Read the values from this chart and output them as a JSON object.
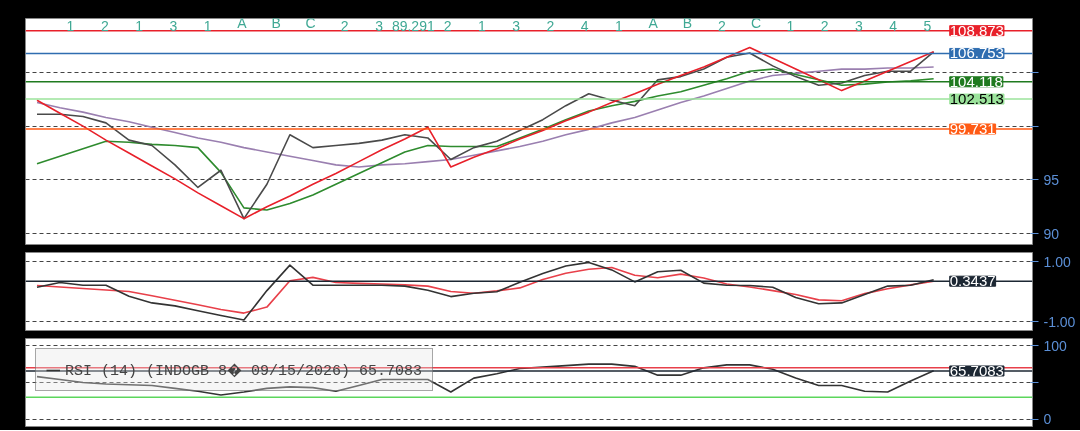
{
  "chart_data": [
    {
      "type": "line",
      "categories": [
        null,
        null,
        null,
        null,
        null,
        null,
        null,
        null,
        null,
        null,
        null,
        null,
        null,
        null,
        null,
        null,
        null,
        null,
        null,
        null,
        null,
        null,
        null,
        null,
        null,
        null,
        null,
        null,
        null,
        null,
        null,
        null,
        null,
        null,
        null,
        null,
        null,
        null,
        null,
        null
      ],
      "series": [
        {
          "color": "#9a7fb0",
          "values": [
            102.2,
            101.7,
            101.3,
            100.8,
            100.4,
            99.9,
            99.4,
            98.9,
            98.5,
            98.0,
            97.6,
            97.2,
            96.8,
            96.4,
            96.2,
            96.4,
            96.5,
            96.7,
            96.9,
            97.3,
            97.7,
            98.1,
            98.6,
            99.2,
            99.7,
            100.3,
            100.8,
            101.5,
            102.2,
            102.8,
            103.5,
            104.2,
            104.7,
            104.9,
            105.1,
            105.3,
            105.3,
            105.4,
            105.4,
            105.5
          ]
        },
        {
          "color": "#2e8b2e",
          "values": [
            96.5,
            97.2,
            97.9,
            98.6,
            98.5,
            98.3,
            98.2,
            98.0,
            95.7,
            92.4,
            92.2,
            92.8,
            93.6,
            94.6,
            95.6,
            96.6,
            97.6,
            98.2,
            98.1,
            98.1,
            98.1,
            98.9,
            99.7,
            100.6,
            101.4,
            101.9,
            102.3,
            102.8,
            103.2,
            103.8,
            104.4,
            105.1,
            105.3,
            104.8,
            104.3,
            103.8,
            103.9,
            104.1,
            104.2,
            104.4
          ]
        },
        {
          "color": "#4a4a4a",
          "values": [
            101.1,
            101.1,
            100.9,
            100.3,
            98.7,
            98.2,
            96.4,
            94.3,
            95.9,
            91.4,
            94.6,
            99.2,
            98.0,
            98.2,
            98.4,
            98.7,
            99.2,
            98.9,
            96.9,
            98.0,
            98.6,
            99.6,
            100.6,
            101.9,
            103.0,
            102.4,
            101.9,
            104.3,
            104.6,
            105.3,
            106.4,
            106.8,
            105.6,
            104.6,
            103.8,
            104.0,
            104.7,
            105.1,
            105.1,
            106.9
          ]
        },
        {
          "color": "#e8202a",
          "values": [
            102.4,
            101.2,
            100.0,
            98.7,
            97.5,
            96.3,
            95.1,
            93.8,
            92.6,
            91.4,
            92.5,
            93.5,
            94.6,
            95.6,
            96.7,
            97.8,
            98.8,
            99.9,
            96.2,
            97.1,
            97.9,
            98.8,
            99.6,
            100.5,
            101.3,
            102.2,
            103.0,
            103.9,
            104.7,
            105.5,
            106.4,
            107.3,
            106.3,
            105.3,
            104.3,
            103.3,
            104.2,
            105.1,
            106.0,
            106.9
          ]
        }
      ],
      "ylim": [
        89,
        110
      ],
      "yticks": [
        90,
        95,
        {
          "value": 100,
          "label": null
        },
        {
          "value": 105,
          "label": null
        }
      ],
      "grid": "y",
      "tick_labels": "y",
      "legend": false,
      "ref_lines": [
        {
          "axis": "y",
          "value": 108.873,
          "label": "108.873",
          "color": "#e8202a",
          "line_style": "solid"
        },
        {
          "axis": "y",
          "value": 106.753,
          "label": "106.753",
          "color": "#2f6db0",
          "line_style": "solid"
        },
        {
          "axis": "y",
          "value": 104.118,
          "label": "104.118",
          "color": "#1f7a1f",
          "line_style": "solid"
        },
        {
          "axis": "y",
          "value": 102.513,
          "label": "102.513",
          "color": "#9be39b",
          "line_style": "solid"
        },
        {
          "axis": "y",
          "value": 99.731,
          "label": "99.731",
          "color": "#ff5a14",
          "line_style": "solid"
        }
      ],
      "annotations": [
        "1",
        "2",
        "1",
        "3",
        "1",
        "A",
        "B",
        "C",
        "2",
        "3",
        "89.291",
        "2",
        "1",
        "3",
        "2",
        "4",
        "1",
        "A",
        "B",
        "2",
        "C",
        "1",
        "2",
        "3",
        "4",
        "5"
      ]
    },
    {
      "type": "line",
      "categories": [
        null,
        null,
        null,
        null,
        null,
        null,
        null,
        null,
        null,
        null,
        null,
        null,
        null,
        null,
        null,
        null,
        null,
        null,
        null,
        null,
        null,
        null,
        null,
        null,
        null,
        null,
        null,
        null,
        null,
        null,
        null,
        null,
        null,
        null,
        null,
        null,
        null,
        null,
        null,
        null
      ],
      "series": [
        {
          "color": "#e8404a",
          "values": [
            0.2,
            0.15,
            0.1,
            0.05,
            0,
            -0.14,
            -0.29,
            -0.44,
            -0.6,
            -0.72,
            -0.52,
            0.36,
            0.47,
            0.3,
            0.27,
            0.25,
            0.22,
            0.18,
            0,
            -0.06,
            0.02,
            0.12,
            0.4,
            0.61,
            0.74,
            0.8,
            0.54,
            0.46,
            0.58,
            0.45,
            0.25,
            0.15,
            0.03,
            -0.1,
            -0.28,
            -0.31,
            -0.07,
            0.09,
            0.22,
            0.34
          ]
        },
        {
          "color": "#333333",
          "values": [
            0.14,
            0.3,
            0.21,
            0.21,
            -0.16,
            -0.38,
            -0.48,
            -0.64,
            -0.8,
            -0.95,
            0.03,
            0.88,
            0.21,
            0.21,
            0.21,
            0.21,
            0.18,
            0.04,
            -0.17,
            -0.06,
            -0.01,
            0.31,
            0.6,
            0.85,
            0.97,
            0.72,
            0.32,
            0.66,
            0.71,
            0.28,
            0.21,
            0.2,
            0.14,
            -0.2,
            -0.41,
            -0.38,
            -0.1,
            0.18,
            0.21,
            0.39
          ]
        }
      ],
      "ylim": [
        -1.3,
        1.3
      ],
      "yticks": [
        {
          "value": 1,
          "label": "1.00"
        },
        {
          "value": -1,
          "label": "-1.00"
        }
      ],
      "grid": "y",
      "tick_labels": "y",
      "legend": false,
      "ref_lines": [
        {
          "axis": "y",
          "value": 0.3437,
          "label": "0.3437",
          "color": "#1c2733",
          "line_style": "solid"
        }
      ]
    },
    {
      "type": "line",
      "categories": [
        null,
        null,
        null,
        null,
        null,
        null,
        null,
        null,
        null,
        null,
        null,
        null,
        null,
        null,
        null,
        null,
        null,
        null,
        null,
        null,
        null,
        null,
        null,
        null,
        null,
        null,
        null,
        null,
        null,
        null,
        null,
        null,
        null,
        null,
        null,
        null,
        null,
        null,
        null,
        null
      ],
      "series": [
        {
          "name": "RSI (14) (INDOGB 8� 09/15/2026) 65.7083",
          "color": "#333333",
          "values": [
            58,
            54,
            50,
            48,
            47,
            46,
            42,
            38,
            33,
            37,
            42,
            44,
            43,
            38,
            46,
            54,
            54,
            54,
            37,
            56,
            62,
            69,
            71,
            73,
            75,
            75,
            72,
            60,
            60,
            70,
            74,
            74,
            68,
            56,
            46,
            46,
            38,
            37,
            52,
            66
          ]
        }
      ],
      "ylim": [
        -10,
        110
      ],
      "yticks": [
        0,
        {
          "value": 50,
          "label": null
        },
        100
      ],
      "grid": "y",
      "tick_labels": "y",
      "legend": "top left",
      "ref_lines": [
        {
          "axis": "y",
          "value": 70,
          "color": "#e8404a",
          "line_style": "solid"
        },
        {
          "axis": "y",
          "value": 30,
          "color": "#5cd65c",
          "line_style": "solid"
        },
        {
          "axis": "y",
          "value": 65.7083,
          "label": "65.7083",
          "color": "#1c2733",
          "line_style": "solid"
        }
      ]
    }
  ]
}
